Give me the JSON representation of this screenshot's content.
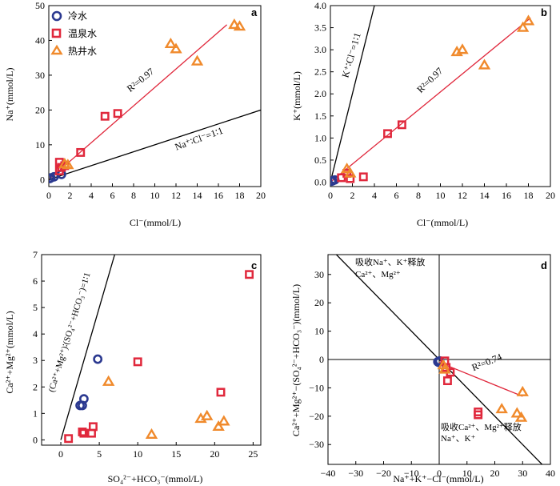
{
  "colors": {
    "cold": "#2b3990",
    "warm": "#e0283c",
    "hotwell": "#f08a2c",
    "fit": "#e0283c",
    "ref": "#000000"
  },
  "legend": [
    {
      "key": "cold",
      "label": "冷水",
      "marker": "circle"
    },
    {
      "key": "warm",
      "label": "温泉水",
      "marker": "square"
    },
    {
      "key": "hotwell",
      "label": "热井水",
      "marker": "triangle"
    }
  ],
  "chart_data": [
    {
      "id": "a",
      "panel_label": "a",
      "type": "scatter",
      "xlabel": "Cl⁻(mmol/L)",
      "ylabel": "Na⁺(mmol/L)",
      "xlim": [
        0,
        20
      ],
      "ylim": [
        -2,
        50
      ],
      "xticks": [
        0,
        2,
        4,
        6,
        8,
        10,
        12,
        14,
        16,
        18,
        20
      ],
      "yticks": [
        0,
        10,
        20,
        30,
        40,
        50
      ],
      "series": [
        {
          "name": "冷水",
          "key": "cold",
          "points": [
            [
              0.1,
              0.3
            ],
            [
              0.2,
              0.5
            ],
            [
              0.5,
              0.8
            ],
            [
              1.2,
              1.5
            ]
          ]
        },
        {
          "name": "温泉水",
          "key": "warm",
          "points": [
            [
              1.0,
              5.0
            ],
            [
              1.0,
              2.5
            ],
            [
              1.2,
              3.5
            ],
            [
              1.5,
              4.0
            ],
            [
              3.0,
              7.8
            ],
            [
              5.3,
              18.2
            ],
            [
              6.5,
              19.0
            ]
          ]
        },
        {
          "name": "热井水",
          "key": "hotwell",
          "points": [
            [
              1.5,
              4.5
            ],
            [
              1.8,
              4.2
            ],
            [
              11.5,
              39.0
            ],
            [
              12.0,
              37.5
            ],
            [
              14.0,
              34.0
            ],
            [
              17.5,
              44.5
            ],
            [
              18.0,
              44.0
            ]
          ]
        }
      ],
      "lines": [
        {
          "kind": "fit",
          "from": [
            0,
            0
          ],
          "to": [
            16.8,
            44.5
          ],
          "label": "R²=0.97"
        },
        {
          "kind": "ref",
          "from": [
            0,
            0
          ],
          "to": [
            20,
            20
          ],
          "label": "Na⁺∶Cl⁻=1∶1"
        }
      ]
    },
    {
      "id": "b",
      "panel_label": "b",
      "type": "scatter",
      "xlabel": "Cl⁻(mmol/L)",
      "ylabel": "K⁺(mmol/L)",
      "xlim": [
        0,
        20
      ],
      "ylim": [
        -0.1,
        4.0
      ],
      "xticks": [
        0,
        2,
        4,
        6,
        8,
        10,
        12,
        14,
        16,
        18,
        20
      ],
      "yticks": [
        0.0,
        0.5,
        1.0,
        1.5,
        2.0,
        2.5,
        3.0,
        3.5,
        4.0
      ],
      "series": [
        {
          "name": "冷水",
          "key": "cold",
          "points": [
            [
              0.1,
              0.02
            ],
            [
              0.2,
              0.03
            ],
            [
              0.4,
              0.05
            ]
          ]
        },
        {
          "name": "温泉水",
          "key": "warm",
          "points": [
            [
              1.0,
              0.1
            ],
            [
              1.5,
              0.2
            ],
            [
              1.8,
              0.08
            ],
            [
              3.0,
              0.12
            ],
            [
              5.2,
              1.1
            ],
            [
              6.5,
              1.3
            ]
          ]
        },
        {
          "name": "热井水",
          "key": "hotwell",
          "points": [
            [
              1.5,
              0.3
            ],
            [
              1.8,
              0.2
            ],
            [
              11.5,
              2.95
            ],
            [
              12.0,
              3.0
            ],
            [
              14.0,
              2.65
            ],
            [
              17.5,
              3.5
            ],
            [
              18.0,
              3.65
            ]
          ]
        }
      ],
      "lines": [
        {
          "kind": "fit",
          "from": [
            0,
            0
          ],
          "to": [
            18.2,
            3.72
          ],
          "label": "R²=0.97"
        },
        {
          "kind": "ref",
          "from": [
            0,
            0
          ],
          "to": [
            4.0,
            4.0
          ],
          "label": "K⁺∶Cl⁻=1∶1"
        }
      ]
    },
    {
      "id": "c",
      "panel_label": "c",
      "type": "scatter",
      "xlabel": "SO₄²⁻+HCO₃⁻(mmol/L)",
      "ylabel": "Ca²⁺+Mg²⁺(mmol/L)",
      "xlim": [
        -2.5,
        26
      ],
      "ylim": [
        -0.2,
        7
      ],
      "xticks": [
        0,
        5,
        10,
        15,
        20,
        25
      ],
      "yticks": [
        0,
        1,
        2,
        3,
        4,
        5,
        6,
        7
      ],
      "series": [
        {
          "name": "冷水",
          "key": "cold",
          "points": [
            [
              2.5,
              1.3
            ],
            [
              2.8,
              1.3
            ],
            [
              3.0,
              1.55
            ],
            [
              4.8,
              3.05
            ]
          ]
        },
        {
          "name": "温泉水",
          "key": "warm",
          "points": [
            [
              1.0,
              0.05
            ],
            [
              2.8,
              0.3
            ],
            [
              3.0,
              0.25
            ],
            [
              4.0,
              0.25
            ],
            [
              4.2,
              0.5
            ],
            [
              10.0,
              2.95
            ],
            [
              20.8,
              1.8
            ],
            [
              24.5,
              6.25
            ]
          ]
        },
        {
          "name": "热井水",
          "key": "hotwell",
          "points": [
            [
              6.2,
              2.2
            ],
            [
              11.8,
              0.2
            ],
            [
              18.2,
              0.8
            ],
            [
              19.0,
              0.9
            ],
            [
              20.5,
              0.5
            ],
            [
              21.2,
              0.7
            ]
          ]
        }
      ],
      "lines": [
        {
          "kind": "ref",
          "from": [
            0,
            0
          ],
          "to": [
            7,
            7
          ],
          "label": "(Ca²⁺+Mg²⁺)∶(SO₄²⁻+HCO₃⁻)=1∶1"
        }
      ]
    },
    {
      "id": "d",
      "panel_label": "d",
      "type": "scatter",
      "xlabel": "Na⁺+K⁺−Cl⁻(mmol/L)",
      "ylabel": "Ca²⁺+Mg²⁺−(SO₄²⁻+HCO₃⁻)(mmol/L)",
      "xlim": [
        -40,
        40
      ],
      "ylim": [
        -37,
        37
      ],
      "xticks": [
        -40,
        -30,
        -20,
        -10,
        0,
        10,
        20,
        30,
        40
      ],
      "yticks": [
        -30,
        -20,
        -10,
        0,
        10,
        20,
        30
      ],
      "series": [
        {
          "name": "冷水",
          "key": "cold",
          "points": [
            [
              -0.5,
              -0.8
            ],
            [
              -0.2,
              -1.0
            ],
            [
              0.2,
              -0.5
            ]
          ]
        },
        {
          "name": "温泉水",
          "key": "warm",
          "points": [
            [
              2.0,
              -0.5
            ],
            [
              2.5,
              -2.8
            ],
            [
              3.0,
              -7.5
            ],
            [
              4.0,
              -4.5
            ],
            [
              14.0,
              -18.5
            ],
            [
              14.0,
              -19.5
            ]
          ]
        },
        {
          "name": "热井水",
          "key": "hotwell",
          "points": [
            [
              1.5,
              -2.0
            ],
            [
              2.0,
              -3.5
            ],
            [
              22.5,
              -17.5
            ],
            [
              28.0,
              -19.0
            ],
            [
              29.5,
              -20.5
            ],
            [
              30.0,
              -11.5
            ]
          ]
        }
      ],
      "lines": [
        {
          "kind": "fit",
          "from": [
            0,
            -1
          ],
          "to": [
            30,
            -13
          ],
          "label": "R²=0.74"
        },
        {
          "kind": "ref",
          "from": [
            -40,
            40
          ],
          "to": [
            40,
            -40
          ],
          "label": ""
        }
      ],
      "quadrant_labels": {
        "upper_left_1": "吸收Na⁺、K⁺释放",
        "upper_left_2": "Ca²⁺、Mg²⁺",
        "lower_right_1": "吸收Ca²⁺、Mg²⁺释放",
        "lower_right_2": "Na⁺、K⁺"
      }
    }
  ]
}
